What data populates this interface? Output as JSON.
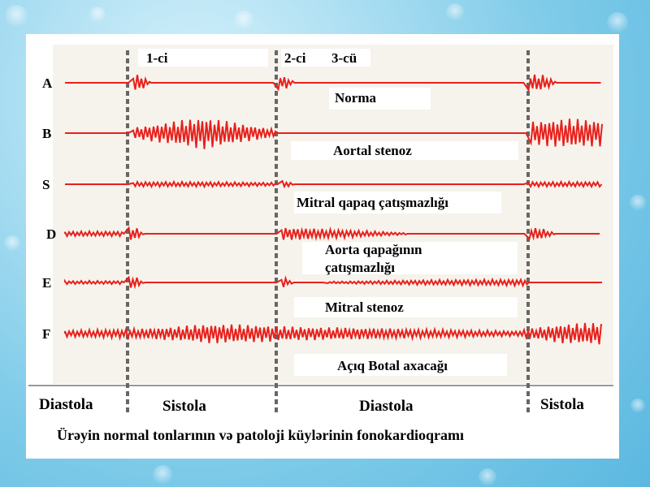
{
  "markers": [
    "1-ci",
    "2-ci",
    "3-cü"
  ],
  "rows": [
    {
      "label": "A",
      "description": [
        "Norma"
      ]
    },
    {
      "label": "B",
      "description": [
        "Aortal stenoz"
      ]
    },
    {
      "label": "S",
      "description": [
        "Mitral qapaq  çatışmazlığı"
      ]
    },
    {
      "label": "D",
      "description": [
        "Aorta qapağının",
        "çatışmazlığı"
      ]
    },
    {
      "label": "E",
      "description": [
        "Mitral stenoz"
      ]
    },
    {
      "label": "F",
      "description": [
        "Açıq Botal axacağı"
      ]
    }
  ],
  "phases": [
    "Diastola",
    "Sistola",
    "Diastola",
    "Sistola"
  ],
  "caption": "Ürəyin normal tonlarının və patoloji küylərinin fonokardioqramı"
}
